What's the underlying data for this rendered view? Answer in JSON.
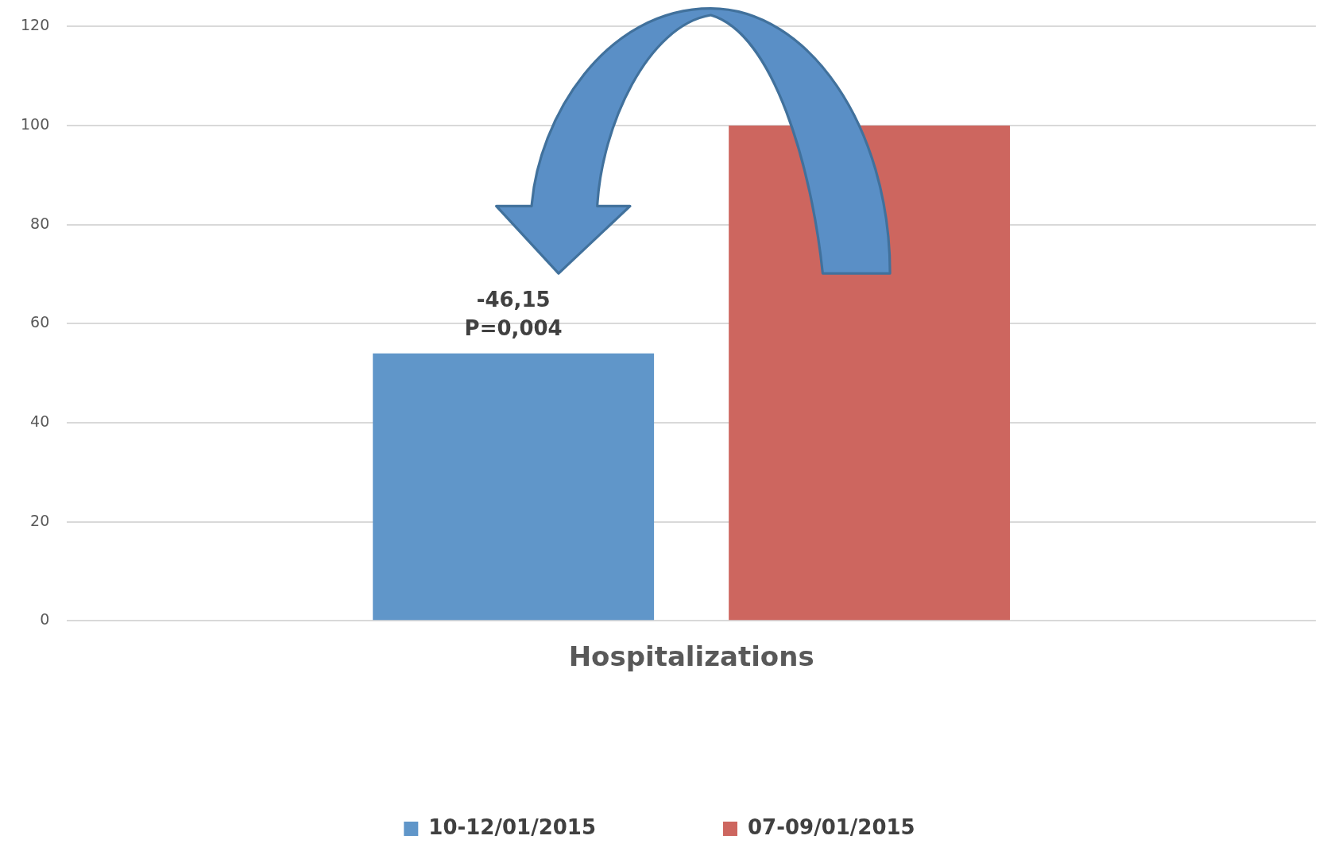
{
  "chart_data": {
    "type": "bar",
    "categories": [
      "Hospitalizations"
    ],
    "series": [
      {
        "name": "10-12/01/2015",
        "color": "#6096c9",
        "values": [
          54
        ]
      },
      {
        "name": "07-09/01/2015",
        "color": "#cd665f",
        "values": [
          100
        ]
      }
    ],
    "ylim": [
      0,
      120
    ],
    "yticks": [
      0,
      20,
      40,
      60,
      80,
      100,
      120
    ],
    "grid": "y",
    "legend": "bottom",
    "annotations": [
      "-46,15",
      "P=0,004"
    ]
  }
}
